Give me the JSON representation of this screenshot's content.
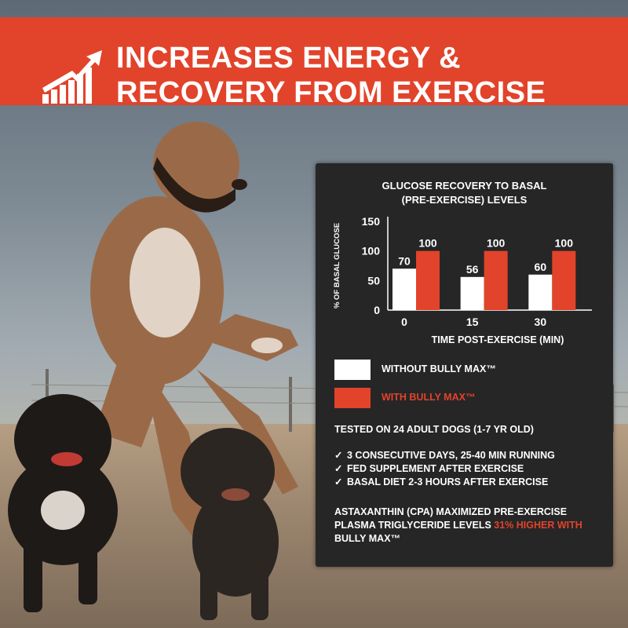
{
  "banner": {
    "title_line1": "INCREASES ENERGY &",
    "title_line2": "RECOVERY FROM EXERCISE",
    "icon": "rising-bar-chart-arrow-icon",
    "color": "#e2432b"
  },
  "chart_data": {
    "type": "bar",
    "title_line1": "GLUCOSE RECOVERY TO BASAL",
    "title_line2": "(PRE-EXERCISE) LEVELS",
    "xlabel": "TIME POST-EXERCISE (MIN)",
    "ylabel": "% OF BASAL GLUCOSE",
    "categories": [
      "0",
      "15",
      "30"
    ],
    "ylim": [
      0,
      150
    ],
    "yticks": [
      "0",
      "50",
      "100",
      "150"
    ],
    "grid": false,
    "series": [
      {
        "name": "WITHOUT BULLY MAX™",
        "color": "#ffffff",
        "values": [
          70,
          56,
          60
        ]
      },
      {
        "name": "WITH BULLY MAX™",
        "color": "#e2432b",
        "values": [
          100,
          100,
          100
        ]
      }
    ]
  },
  "legend": {
    "without": "WITHOUT BULLY MAX™",
    "with": "WITH BULLY MAX™"
  },
  "study": {
    "tested": "TESTED ON 24 ADULT DOGS (1-7 YR OLD)",
    "check_icon": "✓",
    "checks": [
      "3 CONSECUTIVE DAYS, 25-40 MIN RUNNING",
      "FED SUPPLEMENT AFTER EXERCISE",
      "BASAL DIET 2-3 HOURS AFTER EXERCISE"
    ],
    "note_part1": "ASTAXANTHIN (CPA) MAXIMIZED PRE-EXERCISE PLASMA TRIGLYCERIDE LEVELS ",
    "note_highlight": "31% HIGHER WITH",
    "note_part2": "BULLY MAX™"
  }
}
